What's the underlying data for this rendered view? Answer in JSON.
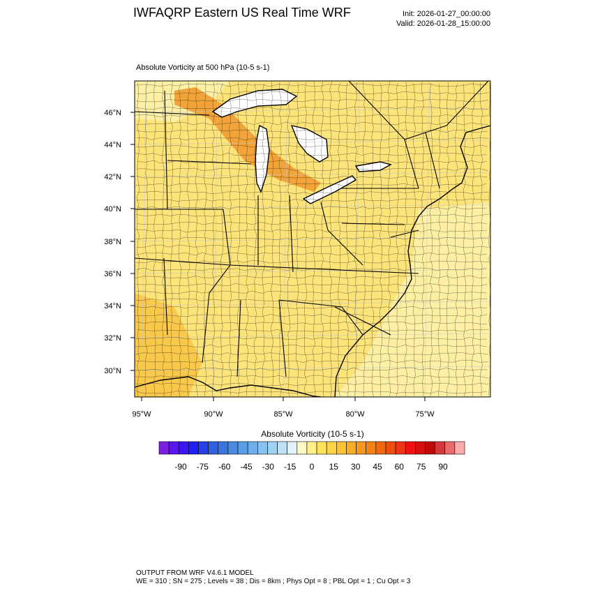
{
  "header": {
    "title": "IWFAQRP Eastern US Real Time WRF",
    "init": "Init: 2026-01-27_00:00:00",
    "valid": "Valid: 2026-01-28_15:00:00"
  },
  "field_title": "Absolute Vorticity at 500 hPa   (10-5 s-1)",
  "map": {
    "lat_labels": [
      "46°N",
      "44°N",
      "42°N",
      "40°N",
      "38°N",
      "36°N",
      "34°N",
      "32°N",
      "30°N"
    ],
    "lon_labels": [
      "95°W",
      "90°W",
      "85°W",
      "80°W",
      "75°W"
    ],
    "field_colors": {
      "base": "#fce37a",
      "light": "#fdf0a4",
      "mid": "#f9c94c",
      "strong": "#f2a43a",
      "water": "#ffffff"
    }
  },
  "colorbar": {
    "title": "Absolute Vorticity  (10-5 s-1)",
    "tick_labels": [
      "-90",
      "-75",
      "-60",
      "-45",
      "-30",
      "-15",
      "0",
      "15",
      "30",
      "45",
      "60",
      "75",
      "90"
    ],
    "colors": [
      "#7a1fe0",
      "#5a16f0",
      "#3a16f7",
      "#1f1ff5",
      "#2440e6",
      "#3060e0",
      "#3a75dd",
      "#4a8ae0",
      "#5a9ee6",
      "#70b0ea",
      "#88c2ee",
      "#a2d2f2",
      "#c0e2f6",
      "#e2f2fa",
      "#fff9c8",
      "#fff08a",
      "#fde25a",
      "#fcd445",
      "#fbc235",
      "#f9ae28",
      "#f7981e",
      "#f58214",
      "#f2680e",
      "#f04e10",
      "#ee3414",
      "#f01212",
      "#d60e0e",
      "#c00a0a",
      "#d23a3a",
      "#e86a6a",
      "#ffaaaa"
    ]
  },
  "footer": {
    "line1": "OUTPUT FROM WRF V4.6.1 MODEL",
    "line2": "WE = 310 ; SN = 275 ; Levels = 38 ; Dis = 8km ; Phys Opt = 8 ; PBL Opt = 1 ; Cu Opt = 3"
  }
}
